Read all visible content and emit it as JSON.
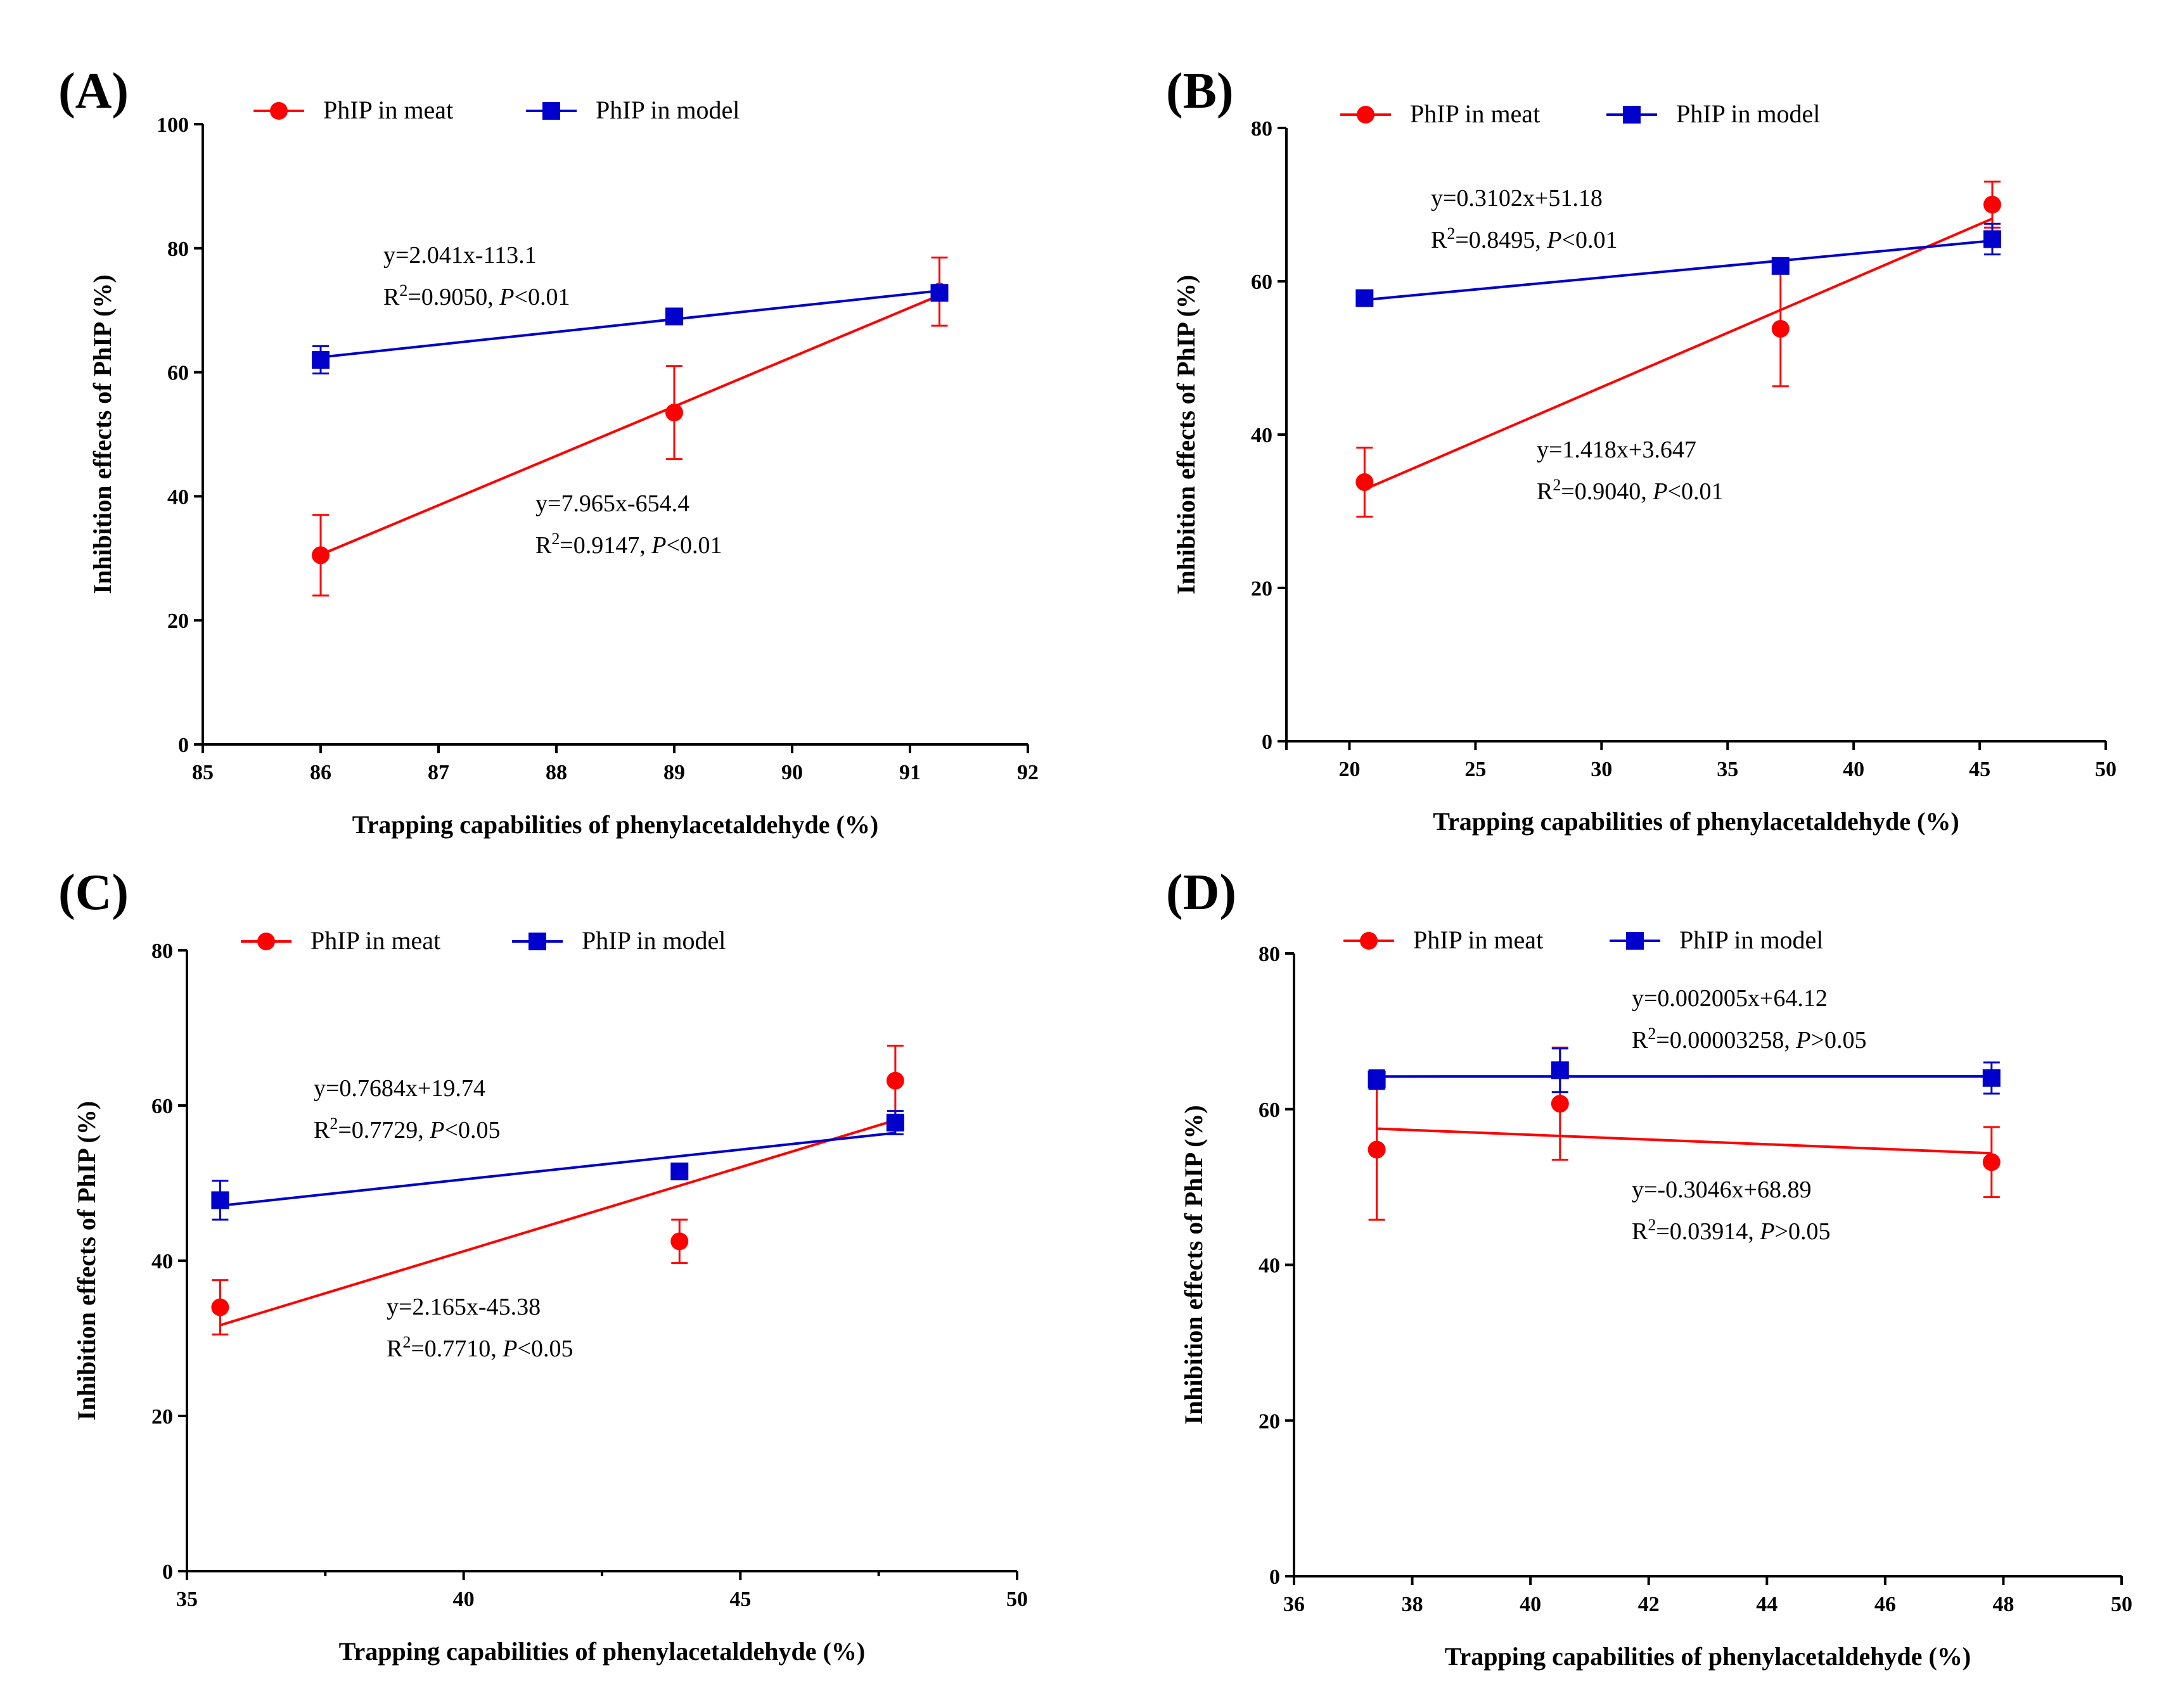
{
  "colors": {
    "meat": "#ff0000",
    "model": "#0000cc",
    "axis": "#000000"
  },
  "legend": {
    "meat_label": "PhIP in meat",
    "model_label": "PhIP in model"
  },
  "chart_data": [
    {
      "panel": "(A)",
      "type": "scatter",
      "xlabel": "Trapping capabilities of phenylacetaldehyde (%)",
      "ylabel": "Inhibition effects of PhIP (%)",
      "xlim": [
        85,
        92
      ],
      "ylim": [
        0,
        100
      ],
      "xticks": [
        85,
        86,
        87,
        88,
        89,
        90,
        91,
        92
      ],
      "yticks": [
        0,
        20,
        40,
        60,
        80,
        100
      ],
      "series": [
        {
          "name": "PhIP in meat",
          "marker": "circle",
          "x": [
            86.0,
            89.0,
            91.25
          ],
          "y": [
            30.5,
            53.5,
            73.0
          ],
          "err": [
            6.5,
            7.5,
            5.5
          ],
          "fit": {
            "slope": 7.965,
            "intercept": -654.4
          },
          "eq": "y=7.965x-654.4",
          "r2_label": "R",
          "r2_value": "=0.9147, ",
          "p_label": "P",
          "p_value": "<0.01"
        },
        {
          "name": "PhIP in model",
          "marker": "square",
          "x": [
            86.0,
            89.0,
            91.25
          ],
          "y": [
            62.0,
            69.0,
            72.8
          ],
          "err": [
            2.2,
            1.2,
            1.0
          ],
          "fit": {
            "slope": 2.041,
            "intercept": -113.1
          },
          "eq": "y=2.041x-113.1",
          "r2_label": "R",
          "r2_value": "=0.9050, ",
          "p_label": "P",
          "p_value": "<0.01"
        }
      ]
    },
    {
      "panel": "(B)",
      "type": "scatter",
      "xlabel": "Trapping capabilities of phenylacetaldehyde (%)",
      "ylabel": "Inhibition effects of PhIP (%)",
      "xlim": [
        17.5,
        50
      ],
      "ylim": [
        0,
        80
      ],
      "xticks": [
        20,
        25,
        30,
        35,
        40,
        45,
        50
      ],
      "yticks": [
        0,
        20,
        40,
        60,
        80
      ],
      "series": [
        {
          "name": "PhIP in meat",
          "marker": "circle",
          "x": [
            20.6,
            37.1,
            45.5
          ],
          "y": [
            33.8,
            53.8,
            70.0
          ],
          "err": [
            4.5,
            7.5,
            3.0
          ],
          "fit": {
            "slope": 1.418,
            "intercept": 3.647
          },
          "eq": "y=1.418x+3.647",
          "r2_label": "R",
          "r2_value": "=0.9040, ",
          "p_label": "P",
          "p_value": "<0.01"
        },
        {
          "name": "PhIP in model",
          "marker": "square",
          "x": [
            20.6,
            37.1,
            45.5
          ],
          "y": [
            57.8,
            62.0,
            65.5
          ],
          "err": [
            0.8,
            1.0,
            2.0
          ],
          "fit": {
            "slope": 0.3102,
            "intercept": 51.18
          },
          "eq": "y=0.3102x+51.18",
          "r2_label": "R",
          "r2_value": "=0.8495, ",
          "p_label": "P",
          "p_value": "<0.01"
        }
      ]
    },
    {
      "panel": "(C)",
      "type": "scatter",
      "xlabel": "Trapping capabilities of phenylacetaldehyde (%)",
      "ylabel": "Inhibition effects of PhIP (%)",
      "xlim": [
        35,
        50
      ],
      "ylim": [
        0,
        80
      ],
      "xticks": [
        35,
        40,
        45,
        50
      ],
      "xminor": [
        37.5,
        42.5,
        47.5
      ],
      "yticks": [
        0,
        20,
        40,
        60,
        80
      ],
      "series": [
        {
          "name": "PhIP in meat",
          "marker": "circle",
          "x": [
            35.6,
            43.9,
            47.8
          ],
          "y": [
            34.0,
            42.5,
            63.2
          ],
          "err": [
            3.5,
            2.8,
            4.5
          ],
          "fit": {
            "slope": 2.165,
            "intercept": -45.38
          },
          "eq": "y=2.165x-45.38",
          "r2_label": "R",
          "r2_value": "=0.7710, ",
          "p_label": "P",
          "p_value": "<0.05"
        },
        {
          "name": "PhIP in model",
          "marker": "square",
          "x": [
            35.6,
            43.9,
            47.8
          ],
          "y": [
            47.8,
            51.5,
            57.8
          ],
          "err": [
            2.5,
            1.0,
            1.5
          ],
          "fit": {
            "slope": 0.7684,
            "intercept": 19.74
          },
          "eq": "y=0.7684x+19.74",
          "r2_label": "R",
          "r2_value": "=0.7729, ",
          "p_label": "P",
          "p_value": "<0.05"
        }
      ]
    },
    {
      "panel": "(D)",
      "type": "scatter",
      "xlabel": "Trapping capabilities of phenylacetaldehyde (%)",
      "ylabel": "Inhibition effects of PhIP (%)",
      "xlim": [
        36,
        50
      ],
      "ylim": [
        0,
        80
      ],
      "xticks": [
        36,
        38,
        40,
        42,
        44,
        46,
        48,
        50
      ],
      "yticks": [
        0,
        20,
        40,
        60,
        80
      ],
      "series": [
        {
          "name": "PhIP in meat",
          "marker": "circle",
          "x": [
            37.4,
            40.5,
            47.8
          ],
          "y": [
            54.8,
            60.7,
            53.2
          ],
          "err": [
            9.0,
            7.2,
            4.5
          ],
          "fit": {
            "slope": -0.3046,
            "intercept": 68.89
          },
          "eq": "y=-0.3046x+68.89",
          "r2_label": "R",
          "r2_value": "=0.03914, ",
          "p_label": "P",
          "p_value": ">0.05"
        },
        {
          "name": "PhIP in model",
          "marker": "square",
          "x": [
            37.4,
            40.5,
            47.8
          ],
          "y": [
            63.8,
            65.0,
            64.0
          ],
          "err": [
            1.2,
            2.8,
            2.0
          ],
          "fit": {
            "slope": 0.002005,
            "intercept": 64.12
          },
          "eq": "y=0.002005x+64.12",
          "r2_label": "R",
          "r2_value": "=0.00003258, ",
          "p_label": "P",
          "p_value": ">0.05"
        }
      ]
    }
  ]
}
